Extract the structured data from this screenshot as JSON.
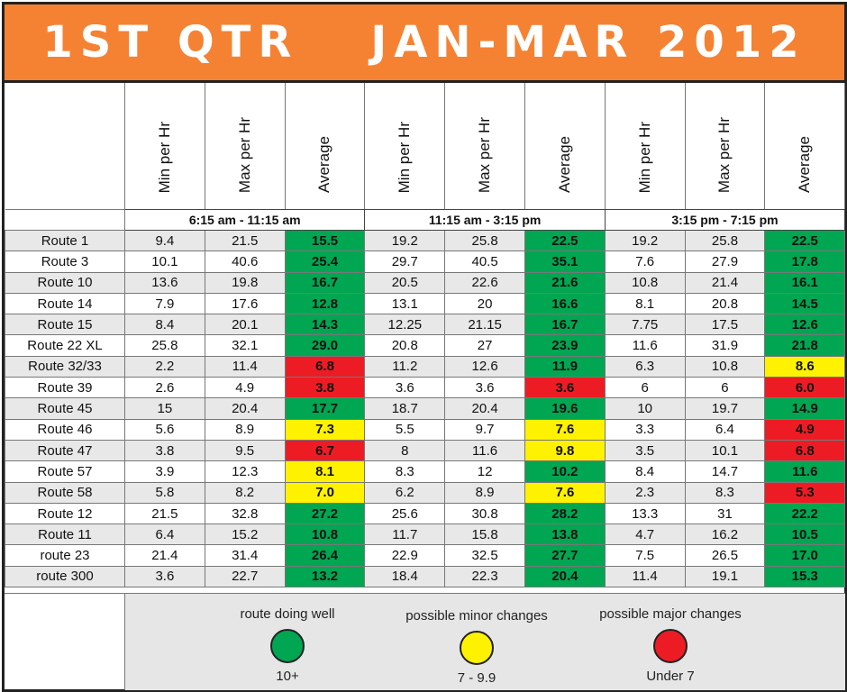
{
  "title": {
    "left": "1ST QTR",
    "right": "JAN-MAR 2012"
  },
  "column_headers": [
    "Min per Hr",
    "Max per Hr",
    "Average"
  ],
  "time_periods": [
    "6:15 am - 11:15 am",
    "11:15 am - 3:15 pm",
    "3:15 pm - 7:15 pm"
  ],
  "colors": {
    "title_bg": "#f58233",
    "good": "#00a651",
    "minor": "#fff200",
    "major": "#ed1c24"
  },
  "chart_data": {
    "type": "table",
    "columns": [
      "Route",
      "6:15 am - 11:15 am Min per Hr",
      "6:15 am - 11:15 am Max per Hr",
      "6:15 am - 11:15 am Average",
      "11:15 am - 3:15 pm Min per Hr",
      "11:15 am - 3:15 pm Max per Hr",
      "11:15 am - 3:15 pm Average",
      "3:15 pm - 7:15 pm Min per Hr",
      "3:15 pm - 7:15 pm Max per Hr",
      "3:15 pm - 7:15 pm Average"
    ],
    "rows": [
      [
        "Route 1",
        "9.4",
        "21.5",
        "15.5",
        "19.2",
        "25.8",
        "22.5",
        "19.2",
        "25.8",
        "22.5"
      ],
      [
        "Route 3",
        "10.1",
        "40.6",
        "25.4",
        "29.7",
        "40.5",
        "35.1",
        "7.6",
        "27.9",
        "17.8"
      ],
      [
        "Route 10",
        "13.6",
        "19.8",
        "16.7",
        "20.5",
        "22.6",
        "21.6",
        "10.8",
        "21.4",
        "16.1"
      ],
      [
        "Route 14",
        "7.9",
        "17.6",
        "12.8",
        "13.1",
        "20",
        "16.6",
        "8.1",
        "20.8",
        "14.5"
      ],
      [
        "Route 15",
        "8.4",
        "20.1",
        "14.3",
        "12.25",
        "21.15",
        "16.7",
        "7.75",
        "17.5",
        "12.6"
      ],
      [
        "Route 22 XL",
        "25.8",
        "32.1",
        "29.0",
        "20.8",
        "27",
        "23.9",
        "11.6",
        "31.9",
        "21.8"
      ],
      [
        "Route 32/33",
        "2.2",
        "11.4",
        "6.8",
        "11.2",
        "12.6",
        "11.9",
        "6.3",
        "10.8",
        "8.6"
      ],
      [
        "Route 39",
        "2.6",
        "4.9",
        "3.8",
        "3.6",
        "3.6",
        "3.6",
        "6",
        "6",
        "6.0"
      ],
      [
        "Route 45",
        "15",
        "20.4",
        "17.7",
        "18.7",
        "20.4",
        "19.6",
        "10",
        "19.7",
        "14.9"
      ],
      [
        "Route 46",
        "5.6",
        "8.9",
        "7.3",
        "5.5",
        "9.7",
        "7.6",
        "3.3",
        "6.4",
        "4.9"
      ],
      [
        "Route 47",
        "3.8",
        "9.5",
        "6.7",
        "8",
        "11.6",
        "9.8",
        "3.5",
        "10.1",
        "6.8"
      ],
      [
        "Route 57",
        "3.9",
        "12.3",
        "8.1",
        "8.3",
        "12",
        "10.2",
        "8.4",
        "14.7",
        "11.6"
      ],
      [
        "Route 58",
        "5.8",
        "8.2",
        "7.0",
        "6.2",
        "8.9",
        "7.6",
        "2.3",
        "8.3",
        "5.3"
      ],
      [
        "Route 12",
        "21.5",
        "32.8",
        "27.2",
        "25.6",
        "30.8",
        "28.2",
        "13.3",
        "31",
        "22.2"
      ],
      [
        "Route 11",
        "6.4",
        "15.2",
        "10.8",
        "11.7",
        "15.8",
        "13.8",
        "4.7",
        "16.2",
        "10.5"
      ],
      [
        "route 23",
        "21.4",
        "31.4",
        "26.4",
        "22.9",
        "32.5",
        "27.7",
        "7.5",
        "26.5",
        "17.0"
      ],
      [
        "route 300",
        "3.6",
        "22.7",
        "13.2",
        "18.4",
        "22.3",
        "20.4",
        "11.4",
        "19.1",
        "15.3"
      ]
    ]
  },
  "legend": [
    {
      "label": "route doing well",
      "range": "10+",
      "color": "#00a651"
    },
    {
      "label": "possible minor changes",
      "range": "7 - 9.9",
      "color": "#fff200"
    },
    {
      "label": "possible major changes",
      "range": "Under 7",
      "color": "#ed1c24"
    }
  ]
}
